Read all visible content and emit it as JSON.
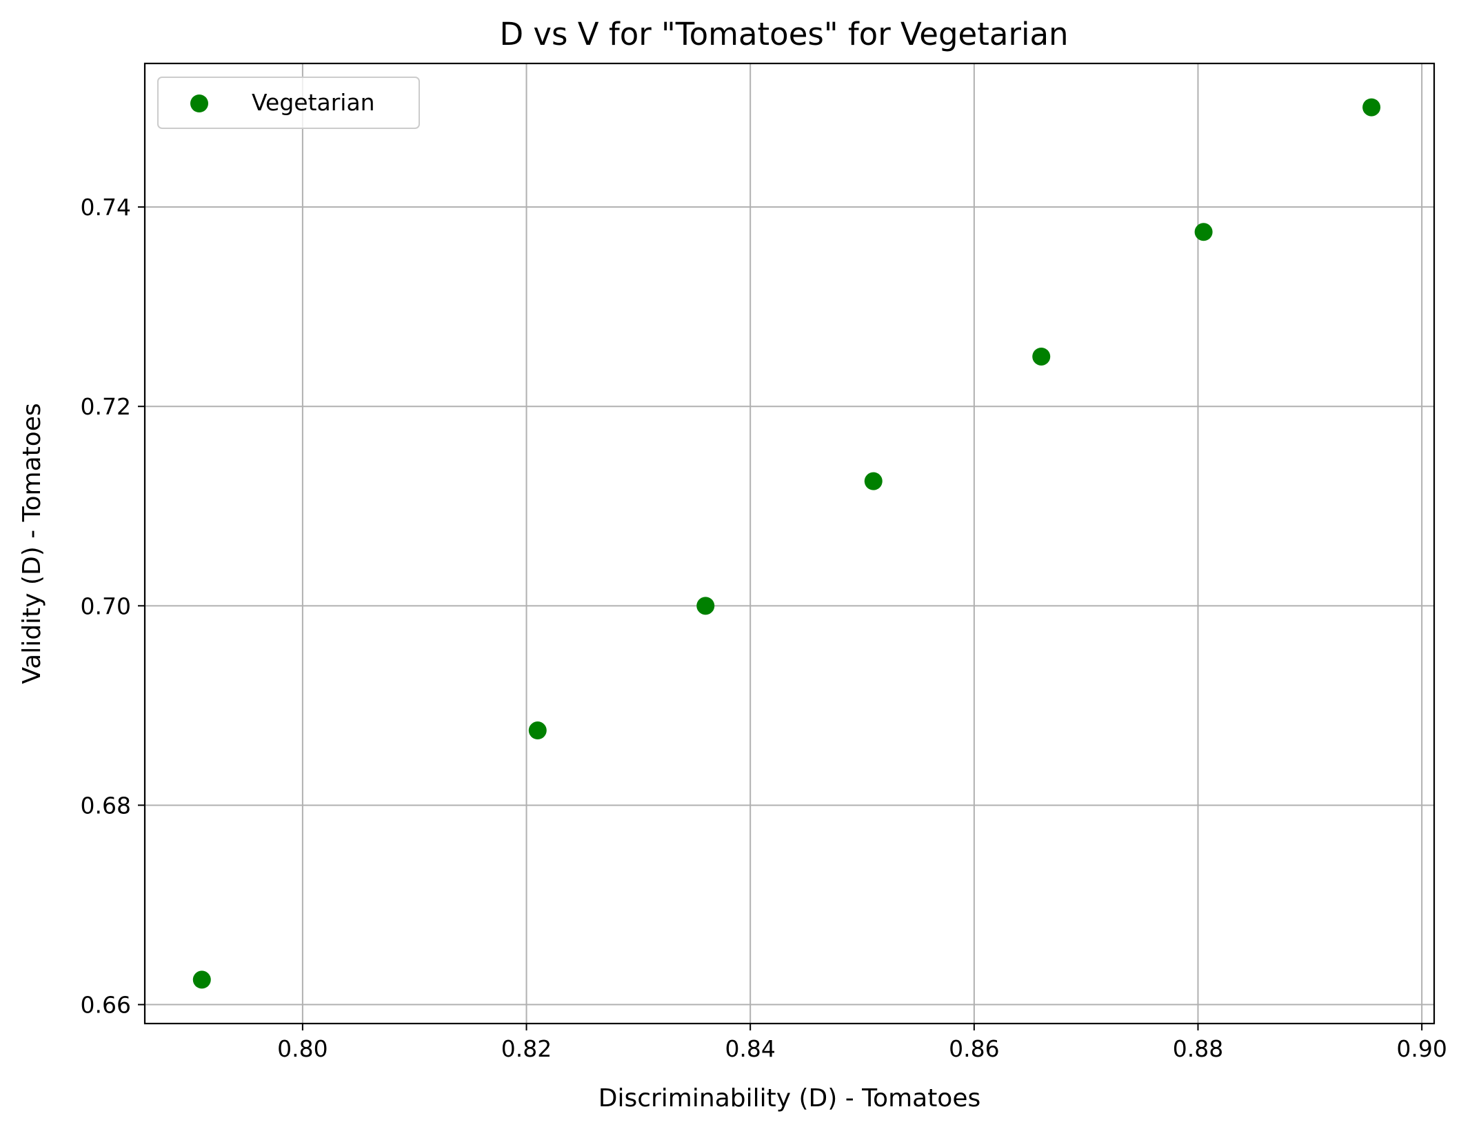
{
  "chart_data": {
    "type": "scatter",
    "title": "D vs V for \"Tomatoes\" for Vegetarian",
    "xlabel": "Discriminability (D) - Tomatoes",
    "ylabel": "Validity (D) - Tomatoes",
    "xlim": [
      0.7859,
      0.9011
    ],
    "ylim": [
      0.6581,
      0.7544
    ],
    "xticks": [
      0.8,
      0.82,
      0.84,
      0.86,
      0.88,
      0.9
    ],
    "xtick_labels": [
      "0.80",
      "0.82",
      "0.84",
      "0.86",
      "0.88",
      "0.90"
    ],
    "yticks": [
      0.66,
      0.68,
      0.7,
      0.72,
      0.74
    ],
    "ytick_labels": [
      "0.66",
      "0.68",
      "0.70",
      "0.72",
      "0.74"
    ],
    "grid": true,
    "legend_position": "top-left",
    "series": [
      {
        "name": "Vegetarian",
        "color": "#008000",
        "x": [
          0.791,
          0.821,
          0.836,
          0.851,
          0.866,
          0.8805,
          0.8955
        ],
        "y": [
          0.6625,
          0.6875,
          0.7,
          0.7125,
          0.725,
          0.7375,
          0.75
        ]
      }
    ]
  }
}
